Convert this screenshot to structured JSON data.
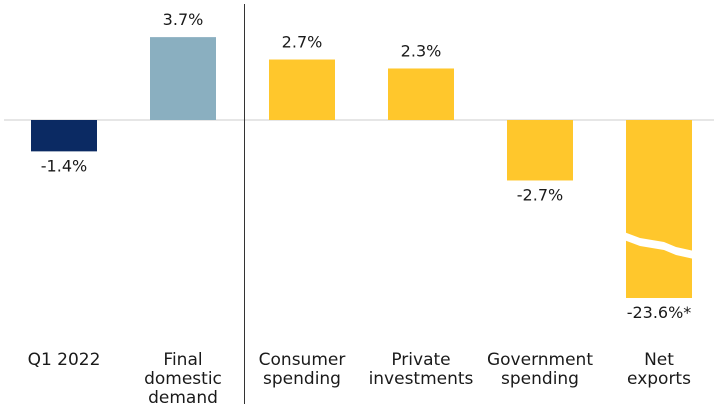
{
  "chart_data": {
    "type": "bar",
    "title": "",
    "xlabel": "",
    "ylabel": "",
    "ylim": [
      -23.6,
      3.7
    ],
    "categories": [
      [
        "Q1 2022"
      ],
      [
        "Final",
        "domestic",
        "demand"
      ],
      [
        "Consumer",
        "spending"
      ],
      [
        "Private",
        "investments"
      ],
      [
        "Government",
        "spending"
      ],
      [
        "Net",
        "exports"
      ]
    ],
    "values": [
      -1.4,
      3.7,
      2.7,
      2.3,
      -2.7,
      -23.6
    ],
    "value_labels": [
      "-1.4%",
      "3.7%",
      "2.7%",
      "2.3%",
      "-2.7%",
      "-23.6%*"
    ],
    "colors": [
      "#0b2a63",
      "#8aafc0",
      "#ffc72c",
      "#ffc72c",
      "#ffc72c",
      "#ffc72c"
    ],
    "axis_break_bar": 5,
    "divider_after_category": 1,
    "grid": false,
    "legend": "none"
  }
}
